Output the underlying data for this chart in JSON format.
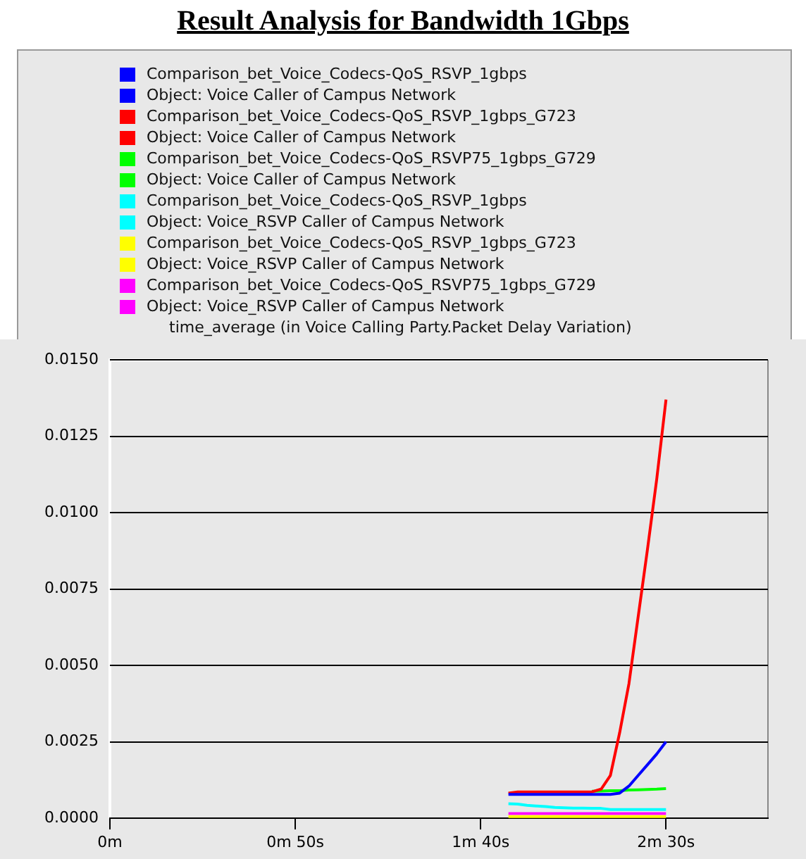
{
  "chart_data": {
    "type": "line",
    "title": "Result Analysis for Bandwidth 1Gbps",
    "subtitle": "time_average (in Voice Calling Party.Packet Delay Variation)",
    "categories": [
      "0m",
      null,
      null,
      null,
      null,
      null,
      null,
      null,
      null,
      null,
      null,
      null,
      null,
      null,
      null,
      null,
      null,
      null,
      null,
      null,
      "0m 50s",
      null,
      null,
      null,
      null,
      null,
      null,
      null,
      null,
      null,
      null,
      null,
      null,
      null,
      null,
      null,
      null,
      null,
      null,
      null,
      "1m 40s",
      null,
      null,
      null,
      null,
      null,
      null,
      null,
      null,
      null,
      null,
      null,
      null,
      null,
      null,
      null,
      null,
      null,
      null,
      null,
      "2m 30s",
      null,
      null,
      null,
      null,
      null,
      null,
      null,
      null,
      null,
      null,
      null
    ],
    "ylim": [
      0,
      0.015
    ],
    "yticks": [
      {
        "value": 0,
        "label": "0.0000"
      },
      {
        "value": 0.0025,
        "label": "0.0025"
      },
      {
        "value": 0.005,
        "label": "0.0050"
      },
      {
        "value": 0.0075,
        "label": "0.0075"
      },
      {
        "value": 0.01,
        "label": "0.0100"
      },
      {
        "value": 0.0125,
        "label": "0.0125"
      },
      {
        "value": 0.015,
        "label": "0.0150"
      }
    ],
    "grid": "y",
    "legend": "top",
    "marker": "none",
    "line_style": "solid",
    "series": [
      {
        "name": "Comparison_bet_Voice_Codecs-QoS_RSVP_1gbps\nObject: Voice Caller of Campus Network",
        "color": "#0000ff",
        "values": [
          null,
          null,
          null,
          null,
          null,
          null,
          null,
          null,
          null,
          null,
          null,
          null,
          null,
          null,
          null,
          null,
          null,
          null,
          null,
          null,
          null,
          null,
          null,
          null,
          null,
          null,
          null,
          null,
          null,
          null,
          null,
          null,
          null,
          null,
          null,
          null,
          null,
          null,
          null,
          null,
          null,
          null,
          null,
          0.00078,
          0.00078,
          0.00078,
          0.00078,
          0.00078,
          0.00078,
          0.00078,
          0.00078,
          0.00078,
          0.00078,
          0.00078,
          0.00078,
          0.00082,
          0.00105,
          0.0014,
          0.00175,
          0.0021,
          0.0025,
          null,
          null,
          null,
          null,
          null,
          null,
          null,
          null,
          null,
          null,
          null
        ]
      },
      {
        "name": "Comparison_bet_Voice_Codecs-QoS_RSVP_1gbps_G723\nObject: Voice Caller of Campus Network",
        "color": "#ff0000",
        "values": [
          null,
          null,
          null,
          null,
          null,
          null,
          null,
          null,
          null,
          null,
          null,
          null,
          null,
          null,
          null,
          null,
          null,
          null,
          null,
          null,
          null,
          null,
          null,
          null,
          null,
          null,
          null,
          null,
          null,
          null,
          null,
          null,
          null,
          null,
          null,
          null,
          null,
          null,
          null,
          null,
          null,
          null,
          null,
          0.00082,
          0.00086,
          0.00086,
          0.00086,
          0.00086,
          0.00086,
          0.00086,
          0.00086,
          0.00086,
          0.00086,
          0.00095,
          0.0014,
          0.0028,
          0.0044,
          0.0066,
          0.0088,
          0.0111,
          0.0137,
          null,
          null,
          null,
          null,
          null,
          null,
          null,
          null,
          null,
          null,
          null
        ]
      },
      {
        "name": "Comparison_bet_Voice_Codecs-QoS_RSVP75_1gbps_G729\nObject: Voice Caller of Campus Network",
        "color": "#00ff00",
        "values": [
          null,
          null,
          null,
          null,
          null,
          null,
          null,
          null,
          null,
          null,
          null,
          null,
          null,
          null,
          null,
          null,
          null,
          null,
          null,
          null,
          null,
          null,
          null,
          null,
          null,
          null,
          null,
          null,
          null,
          null,
          null,
          null,
          null,
          null,
          null,
          null,
          null,
          null,
          null,
          null,
          null,
          null,
          null,
          null,
          null,
          null,
          null,
          null,
          null,
          null,
          null,
          null,
          0.00088,
          0.00089,
          0.0009,
          0.0009,
          0.00092,
          0.00093,
          0.00094,
          0.00095,
          0.00097,
          null,
          null,
          null,
          null,
          null,
          null,
          null,
          null,
          null,
          null,
          null
        ]
      },
      {
        "name": "Comparison_bet_Voice_Codecs-QoS_RSVP_1gbps\nObject: Voice_RSVP Caller of Campus Network",
        "color": "#00ffff",
        "values": [
          null,
          null,
          null,
          null,
          null,
          null,
          null,
          null,
          null,
          null,
          null,
          null,
          null,
          null,
          null,
          null,
          null,
          null,
          null,
          null,
          null,
          null,
          null,
          null,
          null,
          null,
          null,
          null,
          null,
          null,
          null,
          null,
          null,
          null,
          null,
          null,
          null,
          null,
          null,
          null,
          null,
          null,
          null,
          0.00047,
          0.00046,
          0.00042,
          0.0004,
          0.00038,
          0.00035,
          0.00034,
          0.00033,
          0.00033,
          0.00032,
          0.00032,
          0.00028,
          0.00028,
          0.00028,
          0.00028,
          0.00028,
          0.00028,
          0.00028,
          null,
          null,
          null,
          null,
          null,
          null,
          null,
          null,
          null,
          null,
          null
        ]
      },
      {
        "name": "Comparison_bet_Voice_Codecs-QoS_RSVP_1gbps_G723\nObject: Voice_RSVP Caller of Campus Network",
        "color": "#ffff00",
        "values": [
          null,
          null,
          null,
          null,
          null,
          null,
          null,
          null,
          null,
          null,
          null,
          null,
          null,
          null,
          null,
          null,
          null,
          null,
          null,
          null,
          null,
          null,
          null,
          null,
          null,
          null,
          null,
          null,
          null,
          null,
          null,
          null,
          null,
          null,
          null,
          null,
          null,
          null,
          null,
          null,
          null,
          null,
          null,
          5e-05,
          5e-05,
          5e-05,
          5e-05,
          5e-05,
          5e-05,
          5e-05,
          5e-05,
          5e-05,
          5e-05,
          5e-05,
          5e-05,
          5e-05,
          5e-05,
          5e-05,
          5e-05,
          5e-05,
          5e-05,
          null,
          null,
          null,
          null,
          null,
          null,
          null,
          null,
          null,
          null,
          null
        ]
      },
      {
        "name": "Comparison_bet_Voice_Codecs-QoS_RSVP75_1gbps_G729\nObject: Voice_RSVP Caller of Campus Network",
        "color": "#ff00ff",
        "values": [
          null,
          null,
          null,
          null,
          null,
          null,
          null,
          null,
          null,
          null,
          null,
          null,
          null,
          null,
          null,
          null,
          null,
          null,
          null,
          null,
          null,
          null,
          null,
          null,
          null,
          null,
          null,
          null,
          null,
          null,
          null,
          null,
          null,
          null,
          null,
          null,
          null,
          null,
          null,
          null,
          null,
          null,
          null,
          0.00015,
          0.00015,
          0.00015,
          0.00015,
          0.00015,
          0.00015,
          0.00015,
          0.00015,
          0.00015,
          0.00015,
          0.00015,
          0.00015,
          0.00015,
          0.00015,
          0.00015,
          0.00015,
          0.00015,
          0.00015,
          null,
          null,
          null,
          null,
          null,
          null,
          null,
          null,
          null,
          null,
          null
        ]
      }
    ]
  }
}
